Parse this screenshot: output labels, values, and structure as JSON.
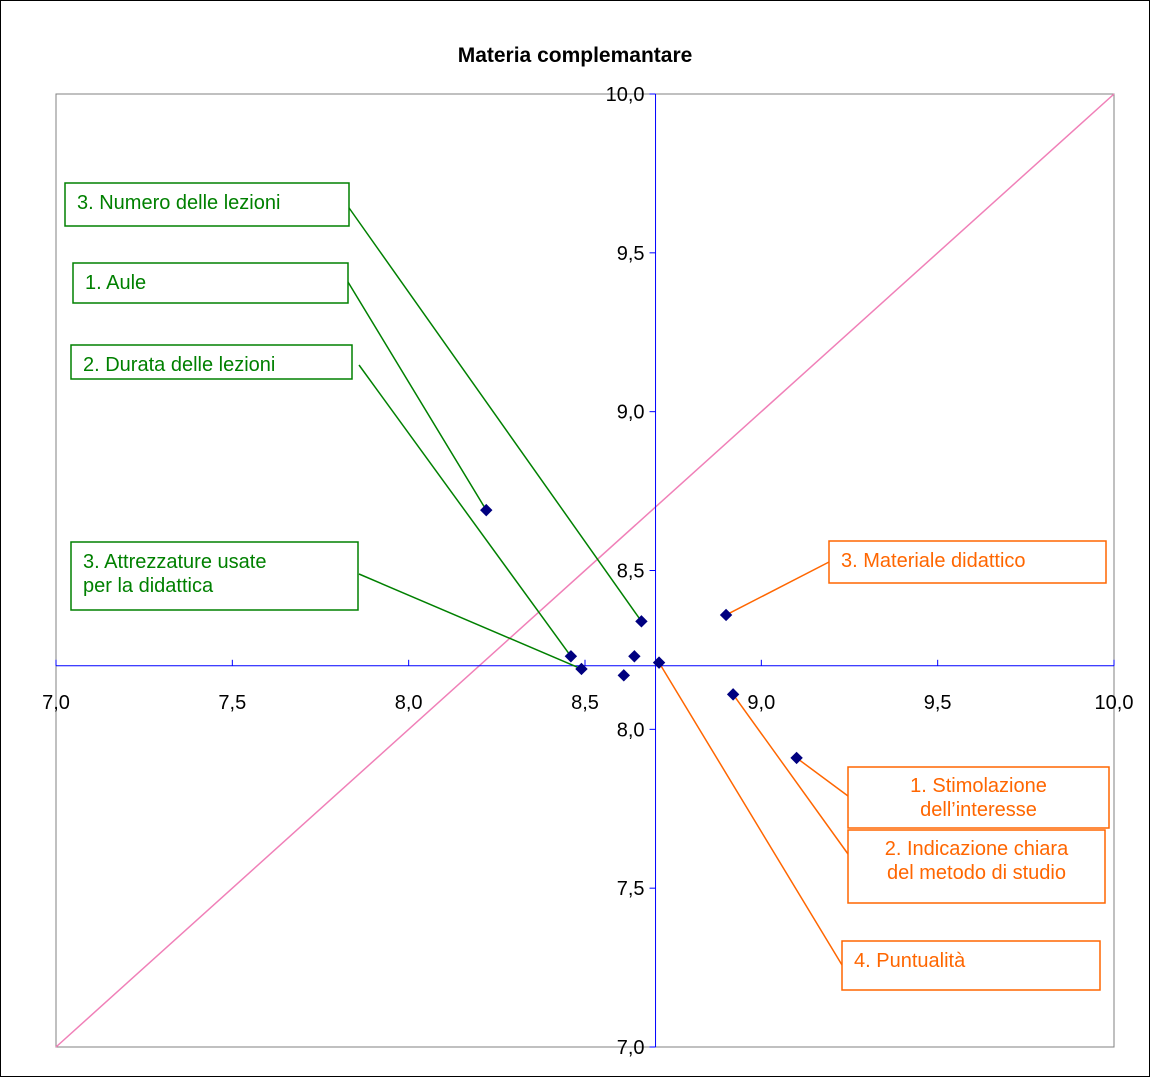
{
  "chart_data": {
    "type": "scatter",
    "title": "Materia complemantare",
    "xlim": [
      7.0,
      10.0
    ],
    "ylim": [
      7.0,
      10.0
    ],
    "axis_crossing": {
      "x": 8.7,
      "y": 8.2
    },
    "x_ticks": [
      "7,0",
      "7,5",
      "8,0",
      "8,5",
      "9,0",
      "9,5",
      "10,0"
    ],
    "y_ticks": [
      "7,0",
      "7,5",
      "8,0",
      "8,5",
      "9,0",
      "9,5",
      "10,0"
    ],
    "grid": false,
    "diagonal": {
      "from": [
        7.0,
        7.0
      ],
      "to": [
        10.0,
        10.0
      ],
      "color": "#f080b8"
    },
    "points": [
      {
        "x": 8.22,
        "y": 8.69
      },
      {
        "x": 8.46,
        "y": 8.23
      },
      {
        "x": 8.49,
        "y": 8.19
      },
      {
        "x": 8.61,
        "y": 8.17
      },
      {
        "x": 8.64,
        "y": 8.23
      },
      {
        "x": 8.66,
        "y": 8.34
      },
      {
        "x": 8.71,
        "y": 8.21
      },
      {
        "x": 8.9,
        "y": 8.36
      },
      {
        "x": 8.92,
        "y": 8.11
      },
      {
        "x": 9.1,
        "y": 7.91
      }
    ],
    "point_color": "#000080",
    "annotations": [
      {
        "lines": [
          "3. Numero delle lezioni"
        ],
        "color": "#008000",
        "point": 5
      },
      {
        "lines": [
          "1. Aule"
        ],
        "color": "#008000",
        "point": 0
      },
      {
        "lines": [
          "2. Durata delle lezioni"
        ],
        "color": "#008000",
        "point": 1
      },
      {
        "lines": [
          "3. Attrezzature usate",
          "per la didattica"
        ],
        "color": "#008000",
        "point": 2
      },
      {
        "lines": [
          "3. Materiale didattico"
        ],
        "color": "#ff6600",
        "point": 7
      },
      {
        "lines": [
          "1. Stimolazione",
          "dell’interesse"
        ],
        "color": "#ff6600",
        "point": 9
      },
      {
        "lines": [
          "2. Indicazione chiara",
          "del metodo di studio"
        ],
        "color": "#ff6600",
        "point": 8
      },
      {
        "lines": [
          "4. Puntualità"
        ],
        "color": "#ff6600",
        "point": 6
      }
    ],
    "axis_color": "#0000ff"
  }
}
